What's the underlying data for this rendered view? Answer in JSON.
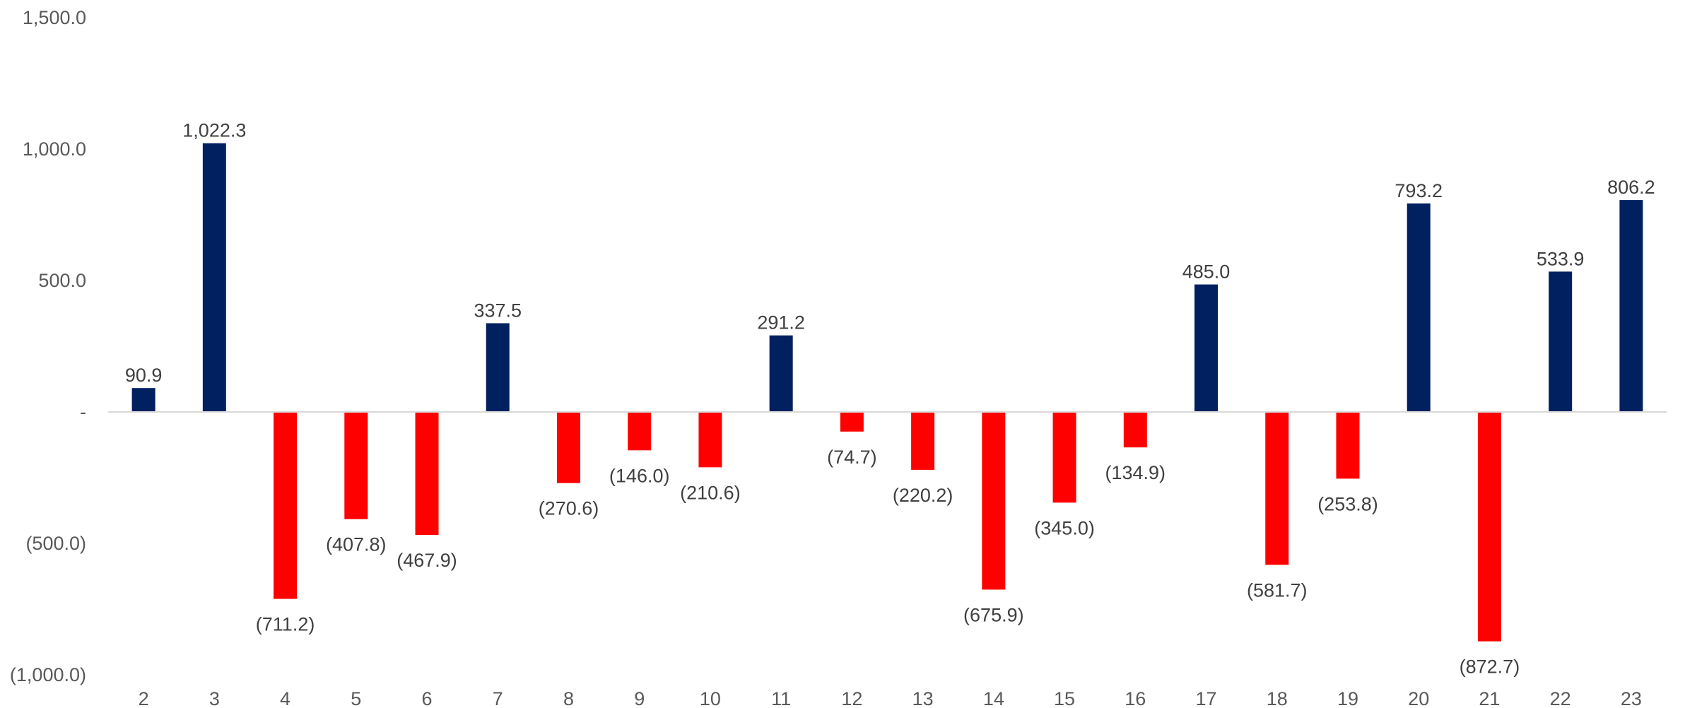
{
  "chart_data": {
    "type": "bar",
    "title": "",
    "xlabel": "",
    "ylabel": "",
    "categories": [
      "2",
      "3",
      "4",
      "5",
      "6",
      "7",
      "8",
      "9",
      "10",
      "11",
      "12",
      "13",
      "14",
      "15",
      "16",
      "17",
      "18",
      "19",
      "20",
      "21",
      "22",
      "23"
    ],
    "values": [
      90.9,
      1022.3,
      -711.2,
      -407.8,
      -467.9,
      337.5,
      -270.6,
      -146.0,
      -210.6,
      291.2,
      -74.7,
      -220.2,
      -675.9,
      -345.0,
      -134.9,
      485.0,
      -581.7,
      -253.8,
      793.2,
      -872.7,
      533.9,
      806.2
    ],
    "data_labels": [
      "90.9",
      "1,022.3",
      "(711.2)",
      "(407.8)",
      "(467.9)",
      "337.5",
      "(270.6)",
      "(146.0)",
      "(210.6)",
      "291.2",
      "(74.7)",
      "(220.2)",
      "(675.9)",
      "(345.0)",
      "(134.9)",
      "485.0",
      "(581.7)",
      "(253.8)",
      "793.2",
      "(872.7)",
      "533.9",
      "806.2"
    ],
    "ylim": [
      -1000,
      1500
    ],
    "y_ticks": [
      {
        "value": 1500,
        "label": "1,500.0"
      },
      {
        "value": 1000,
        "label": "1,000.0"
      },
      {
        "value": 500,
        "label": "500.0"
      },
      {
        "value": 0,
        "label": "-"
      },
      {
        "value": -500,
        "label": "(500.0)"
      },
      {
        "value": -1000,
        "label": "(1,000.0)"
      }
    ],
    "grid": false,
    "legend": "none",
    "colors": {
      "positive": "#002060",
      "negative": "#FF0000",
      "axis": "#D9D9D9"
    }
  }
}
